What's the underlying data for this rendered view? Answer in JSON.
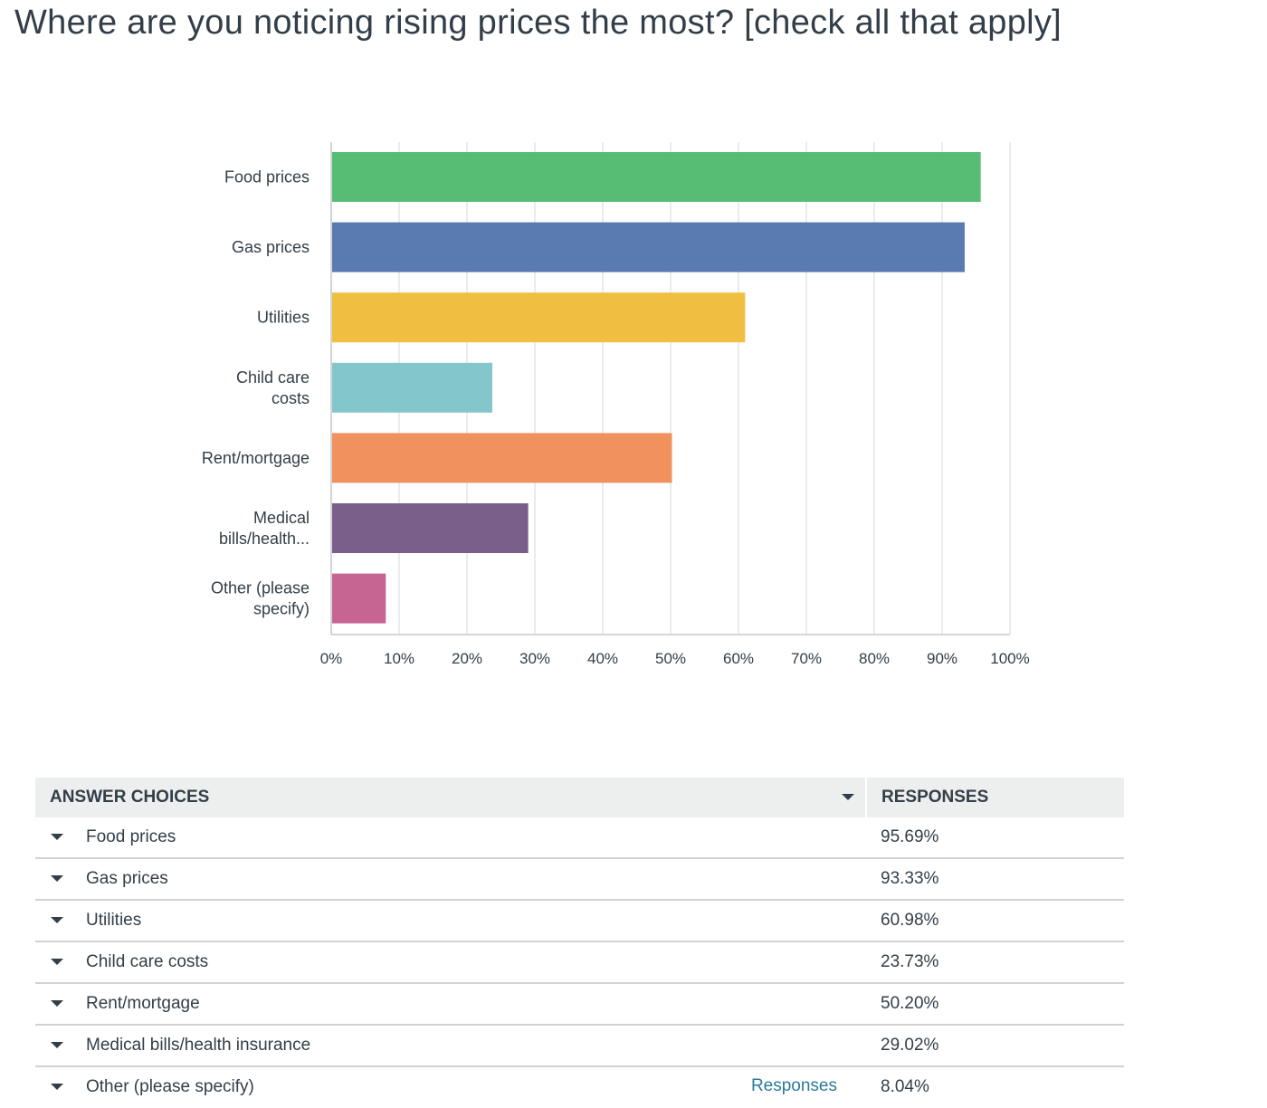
{
  "question": {
    "title": "Where are you noticing rising prices the most? [check all that apply]"
  },
  "chart_data": {
    "type": "bar",
    "orientation": "horizontal",
    "categories": [
      [
        "Food prices"
      ],
      [
        "Gas prices"
      ],
      [
        "Utilities"
      ],
      [
        "Child care",
        "costs"
      ],
      [
        "Rent/mortgage"
      ],
      [
        "Medical",
        "bills/health..."
      ],
      [
        "Other (please",
        "specify)"
      ]
    ],
    "values": [
      95.69,
      93.33,
      60.98,
      23.73,
      50.2,
      29.02,
      8.04
    ],
    "colors": [
      "#57bd75",
      "#5a7bb1",
      "#f0bf42",
      "#84c7cb",
      "#f0915e",
      "#7a5f8b",
      "#c66591"
    ],
    "xlim": [
      0,
      100
    ],
    "xticks": [
      "0%",
      "10%",
      "20%",
      "30%",
      "40%",
      "50%",
      "60%",
      "70%",
      "80%",
      "90%",
      "100%"
    ],
    "grid": true,
    "title": "",
    "xlabel": "",
    "ylabel": ""
  },
  "table": {
    "headers": {
      "choices": "ANSWER CHOICES",
      "responses": "RESPONSES"
    },
    "rows": [
      {
        "label": "Food prices",
        "value": "95.69%"
      },
      {
        "label": "Gas prices",
        "value": "93.33%"
      },
      {
        "label": "Utilities",
        "value": "60.98%"
      },
      {
        "label": "Child care costs",
        "value": "23.73%"
      },
      {
        "label": "Rent/mortgage",
        "value": "50.20%"
      },
      {
        "label": "Medical bills/health insurance",
        "value": "29.02%"
      },
      {
        "label": "Other (please specify)",
        "value": "8.04%",
        "link": "Responses"
      }
    ]
  }
}
